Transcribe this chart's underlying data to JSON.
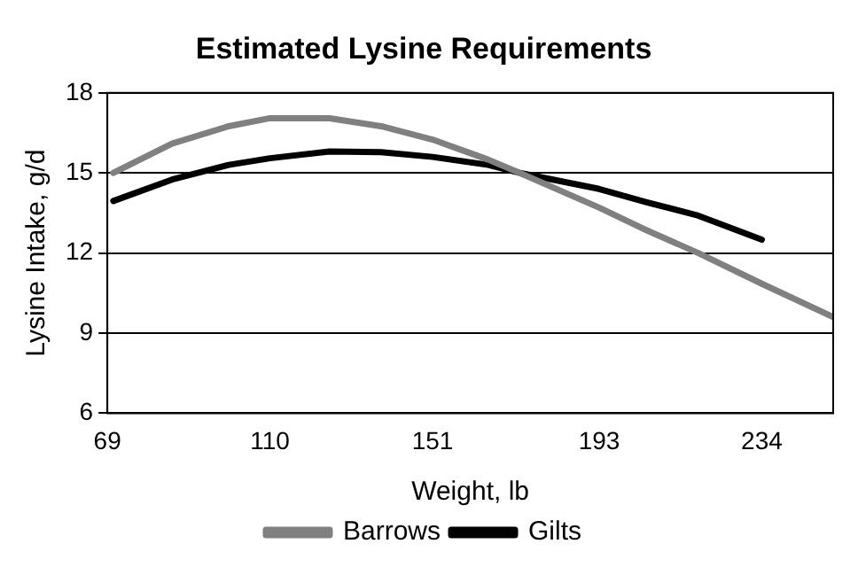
{
  "chart_data": {
    "type": "line",
    "title": "Estimated Lysine Requirements",
    "xlabel": "Weight, lb",
    "ylabel": "Lysine Intake, g/d",
    "xlim": [
      69,
      252
    ],
    "xticks": [
      69,
      110,
      151,
      193,
      234
    ],
    "ylim": [
      6,
      18
    ],
    "yticks": [
      6,
      9,
      12,
      15,
      18
    ],
    "grid": "y",
    "legend": "bottom",
    "marker": "none",
    "line_style": "solid",
    "series": [
      {
        "name": "Barrows",
        "color": "#808080",
        "x": [
          70.5,
          85.3,
          99.6,
          110,
          125,
          138,
          151,
          165,
          173,
          193,
          205,
          218,
          234,
          252
        ],
        "values": [
          15.0,
          16.1,
          16.75,
          17.05,
          17.05,
          16.75,
          16.25,
          15.5,
          15.0,
          13.7,
          12.85,
          12.0,
          10.85,
          9.6
        ]
      },
      {
        "name": "Gilts",
        "color": "#000000",
        "x": [
          70.5,
          85.3,
          99.6,
          110,
          125,
          138,
          151,
          165,
          173,
          193,
          205,
          218,
          234
        ],
        "values": [
          13.95,
          14.75,
          15.3,
          15.55,
          15.8,
          15.78,
          15.6,
          15.3,
          15.0,
          14.4,
          13.9,
          13.4,
          12.5
        ]
      }
    ]
  }
}
